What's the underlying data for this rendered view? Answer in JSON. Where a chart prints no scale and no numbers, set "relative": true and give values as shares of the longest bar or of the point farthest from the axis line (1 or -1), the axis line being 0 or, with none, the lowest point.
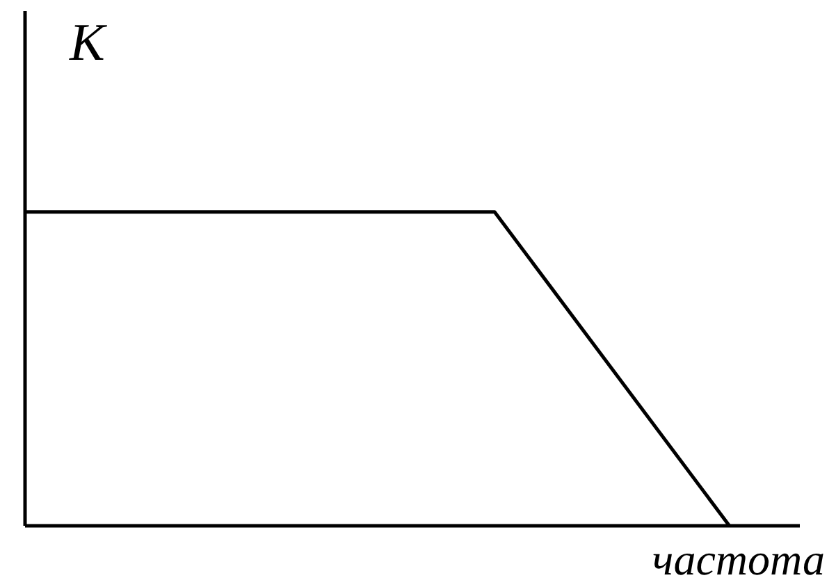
{
  "chart_data": {
    "type": "line",
    "relative": true,
    "xlabel": "частота",
    "ylabel": "K",
    "categories": [
      null,
      null,
      null,
      null
    ],
    "series": [
      {
        "color": "#000000",
        "values": [
          1,
          1,
          1,
          0
        ]
      }
    ],
    "grid": false,
    "legend": false,
    "marker": "none",
    "line_style": "solid"
  }
}
